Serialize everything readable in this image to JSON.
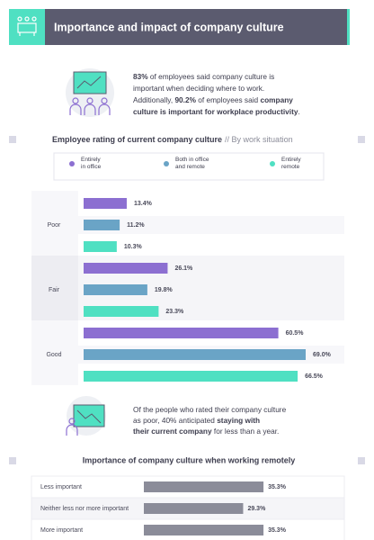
{
  "header": {
    "title": "Importance and impact of company culture"
  },
  "callouts": [
    {
      "lines": [
        [
          "83%",
          " of employees said company culture is"
        ],
        [
          "important when deciding where to work."
        ],
        [
          "Additionally, ",
          "90.2%",
          " of employees said ",
          "company"
        ],
        [
          "culture is important for workplace productivity",
          "."
        ]
      ]
    },
    {
      "lines": [
        [
          "Of the people who rated their company culture"
        ],
        [
          "as poor, 40% anticipated ",
          "staying with"
        ],
        [
          "their current company",
          " for less than a year."
        ]
      ]
    }
  ],
  "chart_data": [
    {
      "type": "bar",
      "orientation": "horizontal",
      "title": "Employee rating of current company culture",
      "subtitle": "// By work situation",
      "categories": [
        "Poor",
        "Fair",
        "Good"
      ],
      "series": [
        {
          "name": "Entirely in office",
          "color": "#8c6fd1",
          "values": [
            13.4,
            26.1,
            60.5
          ],
          "value_labels": [
            "13.4%",
            "26.1%",
            "60.5%"
          ]
        },
        {
          "name": "Both in office and remote",
          "color": "#6aa4c6",
          "values": [
            11.2,
            19.8,
            69.0
          ],
          "value_labels": [
            "11.2%",
            "19.8%",
            "69.0%"
          ]
        },
        {
          "name": "Entirely remote",
          "color": "#4fe0c2",
          "values": [
            10.3,
            23.3,
            66.5
          ],
          "value_labels": [
            "10.3%",
            "23.3%",
            "66.5%"
          ]
        }
      ]
    },
    {
      "type": "bar",
      "orientation": "horizontal",
      "title": "Importance of company culture when working remotely",
      "categories": [
        "Less important",
        "Neither less nor more important",
        "More important"
      ],
      "values": [
        35.3,
        29.3,
        35.3
      ],
      "value_labels": [
        "35.3%",
        "29.3%",
        "35.3%"
      ],
      "color": "#8b8c99"
    }
  ]
}
